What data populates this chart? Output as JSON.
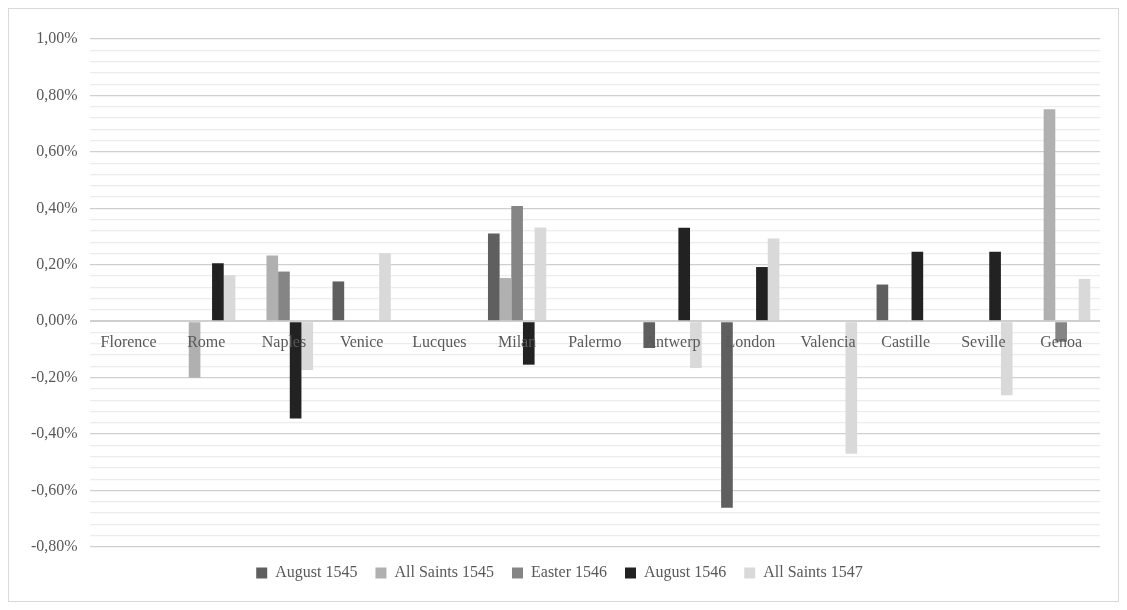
{
  "chart_data": {
    "type": "bar",
    "categories": [
      "Florence",
      "Rome",
      "Naples",
      "Venice",
      "Lucques",
      "Milan",
      "Palermo",
      "Antwerp",
      "London",
      "Valencia",
      "Castille",
      "Seville",
      "Genoa"
    ],
    "series": [
      {
        "name": "August 1545",
        "color": "#5f5f5f",
        "values": [
          null,
          null,
          null,
          0.141,
          null,
          0.311,
          null,
          -0.095,
          -0.661,
          null,
          0.13,
          null,
          null
        ]
      },
      {
        "name": "All Saints 1545",
        "color": "#b0b0b0",
        "values": [
          null,
          -0.2,
          0.233,
          null,
          null,
          0.153,
          null,
          null,
          null,
          null,
          null,
          null,
          0.751
        ]
      },
      {
        "name": "Easter 1546",
        "color": "#858585",
        "values": [
          null,
          null,
          0.176,
          null,
          null,
          0.408,
          null,
          null,
          null,
          null,
          null,
          null,
          -0.073
        ]
      },
      {
        "name": "August 1546",
        "color": "#222222",
        "values": [
          null,
          0.205,
          -0.345,
          null,
          null,
          -0.154,
          null,
          0.331,
          0.192,
          null,
          0.246,
          0.246,
          null
        ]
      },
      {
        "name": "All Saints 1547",
        "color": "#d9d9d9",
        "values": [
          null,
          0.163,
          -0.173,
          0.241,
          null,
          0.332,
          null,
          -0.166,
          0.293,
          -0.47,
          null,
          -0.262,
          0.15
        ]
      }
    ],
    "ylim": [
      -0.8,
      1.0
    ],
    "yticks": [
      {
        "value": -0.8,
        "label": "-0,80%"
      },
      {
        "value": -0.76,
        "label": null
      },
      {
        "value": -0.72,
        "label": null
      },
      {
        "value": -0.68,
        "label": null
      },
      {
        "value": -0.64,
        "label": null
      },
      {
        "value": -0.6,
        "label": "-0,60%"
      },
      {
        "value": -0.56,
        "label": null
      },
      {
        "value": -0.52,
        "label": null
      },
      {
        "value": -0.48,
        "label": null
      },
      {
        "value": -0.44,
        "label": null
      },
      {
        "value": -0.4,
        "label": "-0,40%"
      },
      {
        "value": -0.36,
        "label": null
      },
      {
        "value": -0.32,
        "label": null
      },
      {
        "value": -0.28,
        "label": null
      },
      {
        "value": -0.24,
        "label": null
      },
      {
        "value": -0.2,
        "label": "-0,20%"
      },
      {
        "value": -0.16,
        "label": null
      },
      {
        "value": -0.12,
        "label": null
      },
      {
        "value": -0.08,
        "label": null
      },
      {
        "value": -0.04,
        "label": null
      },
      {
        "value": 0,
        "label": "0,00%"
      },
      {
        "value": 0.04,
        "label": null
      },
      {
        "value": 0.08,
        "label": null
      },
      {
        "value": 0.12,
        "label": null
      },
      {
        "value": 0.16,
        "label": null
      },
      {
        "value": 0.2,
        "label": "0,20%"
      },
      {
        "value": 0.24,
        "label": null
      },
      {
        "value": 0.28,
        "label": null
      },
      {
        "value": 0.32,
        "label": null
      },
      {
        "value": 0.36,
        "label": null
      },
      {
        "value": 0.4,
        "label": "0,40%"
      },
      {
        "value": 0.44,
        "label": null
      },
      {
        "value": 0.48,
        "label": null
      },
      {
        "value": 0.52,
        "label": null
      },
      {
        "value": 0.56,
        "label": null
      },
      {
        "value": 0.6,
        "label": "0,60%"
      },
      {
        "value": 0.64,
        "label": null
      },
      {
        "value": 0.68,
        "label": null
      },
      {
        "value": 0.72,
        "label": null
      },
      {
        "value": 0.76,
        "label": null
      },
      {
        "value": 0.8,
        "label": "0,80%"
      },
      {
        "value": 0.84,
        "label": null
      },
      {
        "value": 0.88,
        "label": null
      },
      {
        "value": 0.92,
        "label": null
      },
      {
        "value": 0.96,
        "label": null
      },
      {
        "value": 1.0,
        "label": "1,00%"
      }
    ],
    "grid": "y",
    "legend": "bottom"
  }
}
